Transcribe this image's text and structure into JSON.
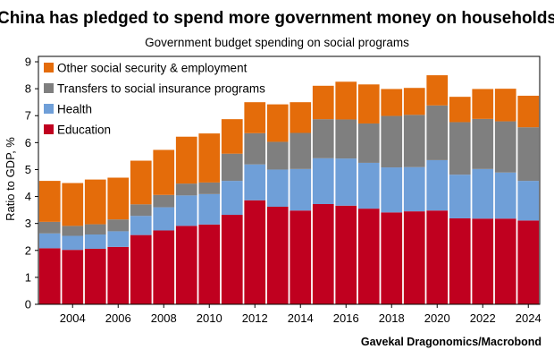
{
  "chart_data": {
    "type": "bar",
    "stacked": true,
    "title": "China has pledged to spend more government money on households",
    "subtitle": "Government budget spending on social programs",
    "ylabel": "Ratio to GDP, %",
    "xlabel": "",
    "source": "Gavekal Dragonomics/Macrobond",
    "ylim": [
      0,
      9.2
    ],
    "yticks": [
      "0",
      "1",
      "2",
      "3",
      "4",
      "5",
      "6",
      "7",
      "8",
      "9"
    ],
    "xticks": [
      "2004",
      "2006",
      "2008",
      "2010",
      "2012",
      "2014",
      "2016",
      "2018",
      "2020",
      "2022",
      "2024"
    ],
    "legend_position": "top-left",
    "categories": [
      "2003",
      "2004",
      "2005",
      "2006",
      "2007",
      "2008",
      "2009",
      "2010",
      "2011",
      "2012",
      "2013",
      "2014",
      "2015",
      "2016",
      "2017",
      "2018",
      "2019",
      "2020",
      "2021",
      "2022",
      "2023",
      "2024"
    ],
    "series": [
      {
        "name": "Education",
        "color": "#c0001f",
        "values": [
          2.08,
          2.02,
          2.06,
          2.13,
          2.57,
          2.74,
          2.91,
          2.96,
          3.32,
          3.86,
          3.62,
          3.48,
          3.72,
          3.66,
          3.55,
          3.41,
          3.45,
          3.48,
          3.19,
          3.18,
          3.18,
          3.11
        ]
      },
      {
        "name": "Health",
        "color": "#6f9fd8",
        "values": [
          0.55,
          0.52,
          0.53,
          0.58,
          0.71,
          0.86,
          1.13,
          1.13,
          1.26,
          1.33,
          1.38,
          1.54,
          1.7,
          1.75,
          1.7,
          1.67,
          1.64,
          1.87,
          1.62,
          1.84,
          1.71,
          1.47
        ]
      },
      {
        "name": "Transfers to social insurance programs",
        "color": "#7f7f7f",
        "values": [
          0.43,
          0.37,
          0.38,
          0.44,
          0.43,
          0.46,
          0.44,
          0.43,
          1.01,
          1.16,
          1.03,
          1.34,
          1.45,
          1.45,
          1.46,
          1.91,
          1.94,
          2.03,
          1.95,
          1.86,
          1.9,
          1.99
        ]
      },
      {
        "name": "Other social security & employment",
        "color": "#e46c0a",
        "values": [
          1.52,
          1.59,
          1.66,
          1.55,
          1.62,
          1.67,
          1.74,
          1.82,
          1.28,
          1.15,
          1.39,
          1.14,
          1.24,
          1.4,
          1.45,
          1.0,
          1.0,
          1.12,
          0.94,
          1.11,
          1.21,
          1.17
        ]
      }
    ]
  }
}
